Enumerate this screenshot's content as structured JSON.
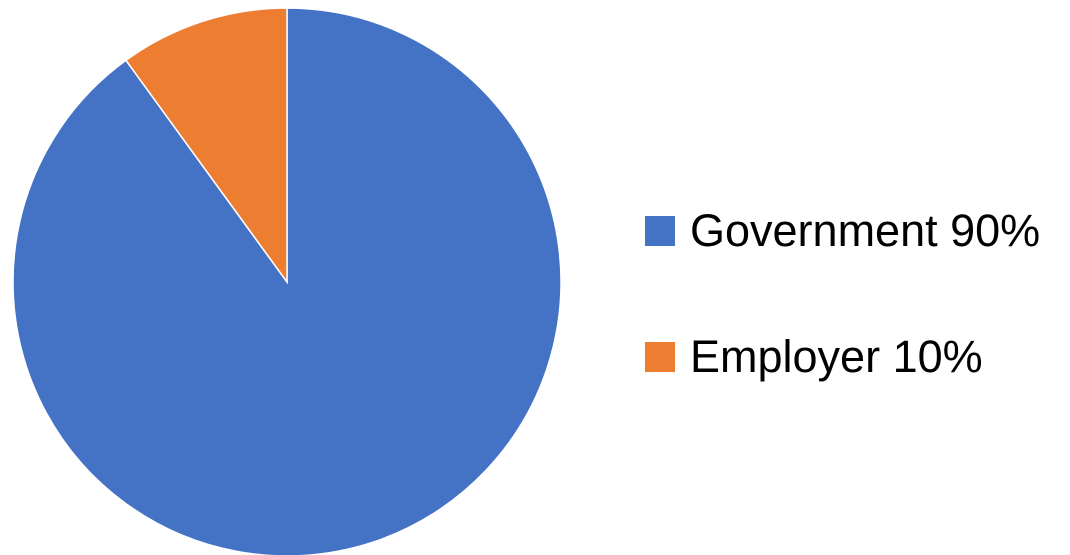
{
  "chart_data": {
    "type": "pie",
    "categories": [
      "Government",
      "Employer"
    ],
    "values": [
      90,
      10
    ],
    "labels": [
      "Government 90%",
      "Employer 10%"
    ],
    "colors": [
      "#4472C4",
      "#ED7D31"
    ],
    "title": "",
    "legend_position": "right"
  }
}
